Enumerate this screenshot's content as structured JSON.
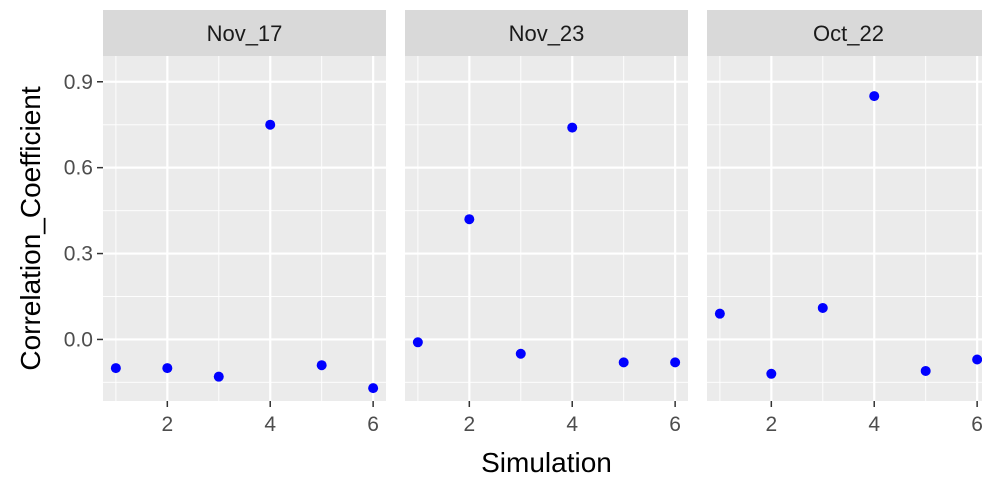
{
  "chart_data": {
    "type": "scatter",
    "facets": [
      {
        "label": "Nov_17",
        "x": [
          1,
          2,
          3,
          4,
          5,
          6
        ],
        "y": [
          -0.1,
          -0.1,
          -0.13,
          0.75,
          -0.09,
          -0.17
        ]
      },
      {
        "label": "Nov_23",
        "x": [
          1,
          2,
          3,
          4,
          5,
          6
        ],
        "y": [
          -0.01,
          0.42,
          -0.05,
          0.74,
          -0.08,
          -0.08
        ]
      },
      {
        "label": "Oct_22",
        "x": [
          1,
          2,
          3,
          4,
          5,
          6
        ],
        "y": [
          0.09,
          -0.12,
          0.11,
          0.85,
          -0.11,
          -0.07
        ]
      }
    ],
    "xlabel": "Simulation",
    "ylabel": "Correlation_Coefficient",
    "x_ticks": [
      2,
      4,
      6
    ],
    "x_tick_labels": [
      "2",
      "4",
      "6"
    ],
    "y_ticks": [
      0.0,
      0.3,
      0.6,
      0.9
    ],
    "y_tick_labels": [
      "0.0",
      "0.3",
      "0.6",
      "0.9"
    ],
    "xlim": [
      0.75,
      6.25
    ],
    "ylim": [
      -0.215,
      0.99
    ],
    "point_color": "#0000ff",
    "panel_background": "#ebebeb",
    "strip_background": "#d9d9d9",
    "grid": true,
    "legend": "none"
  }
}
